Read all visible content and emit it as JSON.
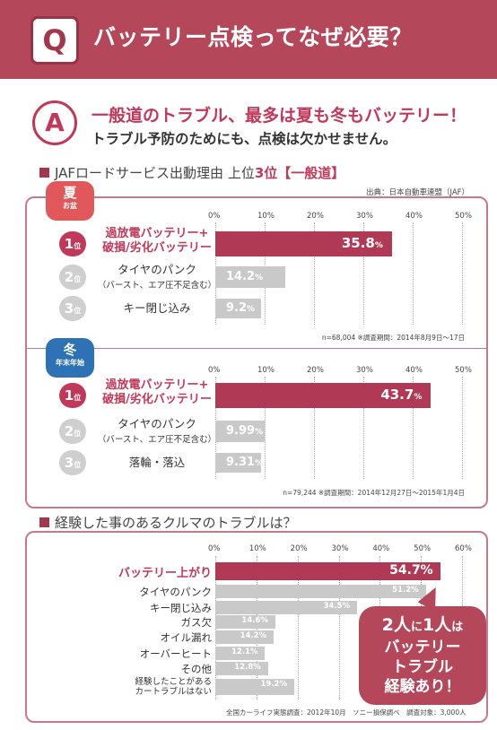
{
  "question": {
    "mark": "Q",
    "title": "バッテリー点検ってなぜ必要？"
  },
  "answer": {
    "mark": "A",
    "line1": "一般道のトラブル、最多は夏も冬もバッテリー！",
    "line2": "トラブル予防のためにも、点検は欠かせません。"
  },
  "section1": {
    "title_prefix": "JAFロードサービス出動理由 上位",
    "title_rank": "3位",
    "title_tag": "【一般道】",
    "source": "出典：日本自動車連盟（JAF）"
  },
  "colors": {
    "accent": "#c0395a",
    "bar_red": "#b03a55",
    "bar_gray": "#c9c9c9",
    "summer": "#e0585a",
    "winter": "#2c72b4"
  },
  "chart_data": [
    {
      "type": "bar",
      "season": "夏",
      "season_sub": "お盆",
      "axis_ticks": [
        "0%",
        "10%",
        "20%",
        "30%",
        "40%",
        "50%"
      ],
      "xlim": [
        0,
        50
      ],
      "rows": [
        {
          "rank": "1",
          "rank_unit": "位",
          "label": "過放電バッテリー+\n破損/劣化バッテリー",
          "value": 35.8,
          "value_text": "35.8",
          "unit": "%"
        },
        {
          "rank": "2",
          "rank_unit": "位",
          "label": "タイヤのパンク",
          "sub": "（バースト、エア圧不足含む）",
          "value": 14.2,
          "value_text": "14.2",
          "unit": "%"
        },
        {
          "rank": "3",
          "rank_unit": "位",
          "label": "キー閉じ込み",
          "value": 9.2,
          "value_text": "9.2",
          "unit": "%"
        }
      ],
      "note": "n=68,004 ※調査期間：2014年8月9日〜17日"
    },
    {
      "type": "bar",
      "season": "冬",
      "season_sub": "年末年始",
      "axis_ticks": [
        "0%",
        "10%",
        "20%",
        "30%",
        "40%",
        "50%"
      ],
      "xlim": [
        0,
        50
      ],
      "rows": [
        {
          "rank": "1",
          "rank_unit": "位",
          "label": "過放電バッテリー+\n破損/劣化バッテリー",
          "value": 43.7,
          "value_text": "43.7",
          "unit": "%"
        },
        {
          "rank": "2",
          "rank_unit": "位",
          "label": "タイヤのパンク",
          "sub": "（バースト、エア圧不足含む）",
          "value": 9.99,
          "value_text": "9.99",
          "unit": "%"
        },
        {
          "rank": "3",
          "rank_unit": "位",
          "label": "落輪・落込",
          "value": 9.31,
          "value_text": "9.31",
          "unit": "%"
        }
      ],
      "note": "n=79,244 ※調査期間：2014年12月27日〜2015年1月4日"
    },
    {
      "type": "bar",
      "title": "経験した事のあるクルマのトラブルは？",
      "axis_ticks": [
        "0%",
        "10%",
        "20%",
        "30%",
        "40%",
        "50%",
        "60%"
      ],
      "xlim": [
        0,
        60
      ],
      "rows": [
        {
          "label": "バッテリー上がり",
          "value": 54.7,
          "value_text": "54.7%"
        },
        {
          "label": "タイヤのパンク",
          "value": 51.2,
          "value_text": "51.2%"
        },
        {
          "label": "キー閉じ込み",
          "value": 34.5,
          "value_text": "34.5%"
        },
        {
          "label": "ガス欠",
          "value": 14.6,
          "value_text": "14.6%"
        },
        {
          "label": "オイル漏れ",
          "value": 14.2,
          "value_text": "14.2%"
        },
        {
          "label": "オーバーヒート",
          "value": 12.1,
          "value_text": "12.1%"
        },
        {
          "label": "その他",
          "value": 12.8,
          "value_text": "12.8%"
        },
        {
          "label": "経験したことがある\nカートラブルはない",
          "value": 19.2,
          "value_text": "19.2%"
        }
      ],
      "note": "全国カーライフ実態調査：2012年10月　ソニー損保調べ　調査対象：3,000人"
    }
  ],
  "callout": {
    "line1a": "2人",
    "line1b": "に",
    "line1c": "1人",
    "line1d": "は",
    "line2": "バッテリー",
    "line3": "トラブル",
    "line4": "経験あり！"
  }
}
